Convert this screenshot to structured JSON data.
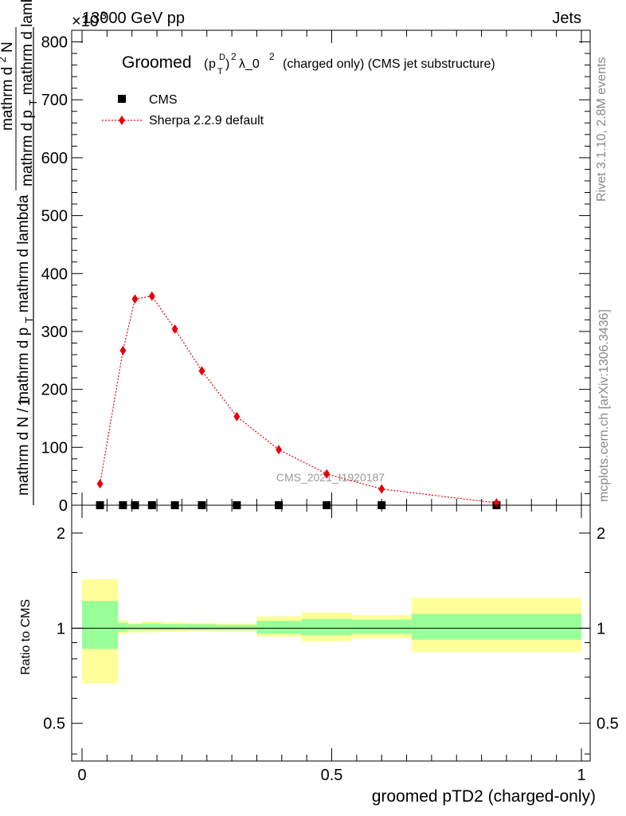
{
  "header": {
    "left": "13000 GeV pp",
    "right": "Jets",
    "exponent": "×10^3"
  },
  "side_labels": {
    "top": "Rivet 3.1.10,  2.8M events",
    "bottom": "mcplots.cern.ch [arXiv:1306.3436]"
  },
  "watermark": "CMS_2021_I1920187",
  "chart_data": [
    {
      "type": "line",
      "title": {
        "prefix": "Groomed",
        "p": "p",
        "sup_d": "D",
        "sub_t": "T",
        "pow": "2",
        "lambda": "λ_0",
        "lambda_pow": "2",
        "suffix": "(charged only) (CMS jet substructure)"
      },
      "ylabel_parts": {
        "num_outer": "1",
        "den_outer": "mathrm d N / mathrm d p",
        "den_outer_sub": "T",
        "den_outer_tail": " mathrm d lambda",
        "num_inner": "mathrm d",
        "num_inner_sup": "2",
        "num_inner_tail": "N",
        "den_inner": "mathrm d p",
        "den_inner_sub": "T",
        "den_inner_tail": " mathrm d lambda"
      },
      "ylim": [
        0,
        820
      ],
      "yticks": [
        0,
        100,
        200,
        300,
        400,
        500,
        600,
        700,
        800
      ],
      "xlim": [
        0,
        1
      ],
      "legend": {
        "placement": "top-left",
        "entries": [
          "CMS",
          "Sherpa 2.2.9 default"
        ]
      },
      "series": [
        {
          "name": "CMS",
          "marker": "square",
          "color": "#000000",
          "x": [
            0.036,
            0.082,
            0.106,
            0.14,
            0.186,
            0.24,
            0.31,
            0.394,
            0.49,
            0.6,
            0.83
          ],
          "values": [
            0,
            0,
            0,
            0,
            0,
            0,
            0,
            0,
            0,
            0,
            0
          ]
        },
        {
          "name": "Sherpa 2.2.9 default",
          "marker": "diamond",
          "color": "#e8000b",
          "x": [
            0.036,
            0.082,
            0.106,
            0.14,
            0.186,
            0.24,
            0.31,
            0.394,
            0.49,
            0.6,
            0.83
          ],
          "values": [
            37,
            267,
            356,
            361,
            304,
            232,
            153,
            96,
            54,
            28,
            4
          ]
        }
      ]
    },
    {
      "type": "area",
      "ylabel": "Ratio to CMS",
      "xlabel": "groomed pTD2 (charged-only)",
      "ylog": true,
      "ylim": [
        0.38,
        2.45
      ],
      "yticks": [
        0.5,
        1,
        2
      ],
      "xlim": [
        0,
        1
      ],
      "xticks": [
        0,
        0.5,
        1
      ],
      "band_colors": {
        "inner": "#99ff99",
        "outer": "#ffff99"
      },
      "bins": [
        {
          "x0": 0.0,
          "x1": 0.072,
          "inner": [
            0.86,
            1.22
          ],
          "outer": [
            0.67,
            1.43
          ]
        },
        {
          "x0": 0.072,
          "x1": 0.092,
          "inner": [
            0.975,
            1.04
          ],
          "outer": [
            0.96,
            1.06
          ]
        },
        {
          "x0": 0.092,
          "x1": 0.12,
          "inner": [
            0.985,
            1.03
          ],
          "outer": [
            0.97,
            1.04
          ]
        },
        {
          "x0": 0.12,
          "x1": 0.16,
          "inner": [
            0.985,
            1.035
          ],
          "outer": [
            0.97,
            1.05
          ]
        },
        {
          "x0": 0.16,
          "x1": 0.21,
          "inner": [
            0.985,
            1.03
          ],
          "outer": [
            0.975,
            1.045
          ]
        },
        {
          "x0": 0.21,
          "x1": 0.27,
          "inner": [
            0.985,
            1.03
          ],
          "outer": [
            0.98,
            1.04
          ]
        },
        {
          "x0": 0.27,
          "x1": 0.35,
          "inner": [
            0.985,
            1.025
          ],
          "outer": [
            0.98,
            1.035
          ]
        },
        {
          "x0": 0.35,
          "x1": 0.44,
          "inner": [
            0.96,
            1.055
          ],
          "outer": [
            0.94,
            1.09
          ]
        },
        {
          "x0": 0.44,
          "x1": 0.54,
          "inner": [
            0.95,
            1.07
          ],
          "outer": [
            0.91,
            1.12
          ]
        },
        {
          "x0": 0.54,
          "x1": 0.66,
          "inner": [
            0.96,
            1.065
          ],
          "outer": [
            0.93,
            1.1
          ]
        },
        {
          "x0": 0.66,
          "x1": 1.0,
          "inner": [
            0.92,
            1.11
          ],
          "outer": [
            0.84,
            1.25
          ]
        }
      ],
      "reference": 1
    }
  ]
}
